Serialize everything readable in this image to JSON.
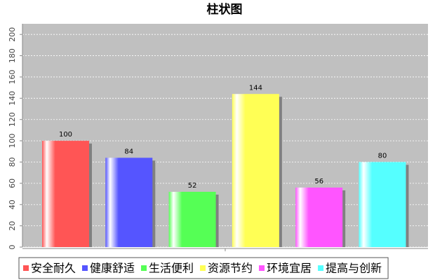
{
  "chart_data": {
    "type": "bar",
    "title": "柱状图",
    "categories": [
      null
    ],
    "series": [
      {
        "name": "安全耐久",
        "color": "#ff5555",
        "values": [
          100
        ]
      },
      {
        "name": "健康舒适",
        "color": "#5555ff",
        "values": [
          84
        ]
      },
      {
        "name": "生活便利",
        "color": "#55ff55",
        "values": [
          52
        ]
      },
      {
        "name": "资源节约",
        "color": "#ffff55",
        "values": [
          144
        ]
      },
      {
        "name": "环境宜居",
        "color": "#ff55ff",
        "values": [
          56
        ]
      },
      {
        "name": "提高与创新",
        "color": "#55ffff",
        "values": [
          80
        ]
      }
    ],
    "ylim": [
      0,
      210
    ],
    "yticks": [
      0,
      20,
      40,
      60,
      80,
      100,
      120,
      140,
      160,
      180,
      200
    ],
    "grid": true,
    "legend": "bottom"
  }
}
